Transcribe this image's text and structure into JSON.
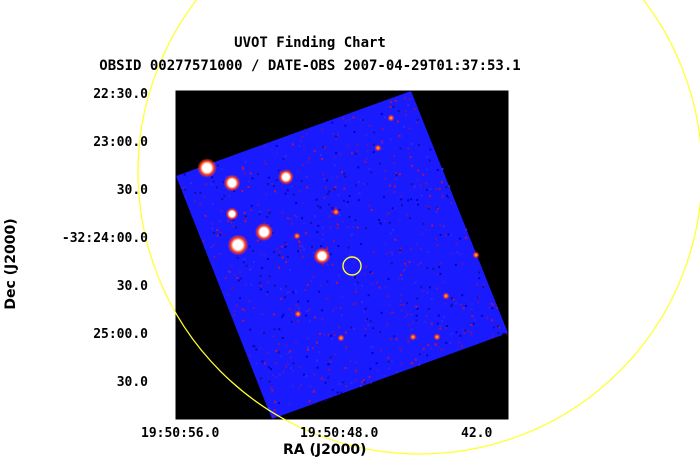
{
  "title": "UVOT Finding Chart",
  "subtitle": "OBSID 00277571000 / DATE-OBS 2007-04-29T01:37:53.1",
  "dec_ticks": [
    "22:30.0",
    "23:00.0",
    "30.0",
    "-32:24:00.0",
    "30.0",
    "25:00.0",
    "30.0"
  ],
  "ra_ticks": [
    "19:50:56.0",
    "19:50:48.0",
    "42.0"
  ],
  "xlabel": "RA (J2000)",
  "ylabel": "Dec (J2000)",
  "colors": {
    "background_field": "#000000",
    "image_field": "#1a1aff",
    "error_circle": "#ffff33",
    "target_marker": "#ffff33",
    "bright_source": "#ffffff",
    "source_halo": "#ff2a1a"
  }
}
